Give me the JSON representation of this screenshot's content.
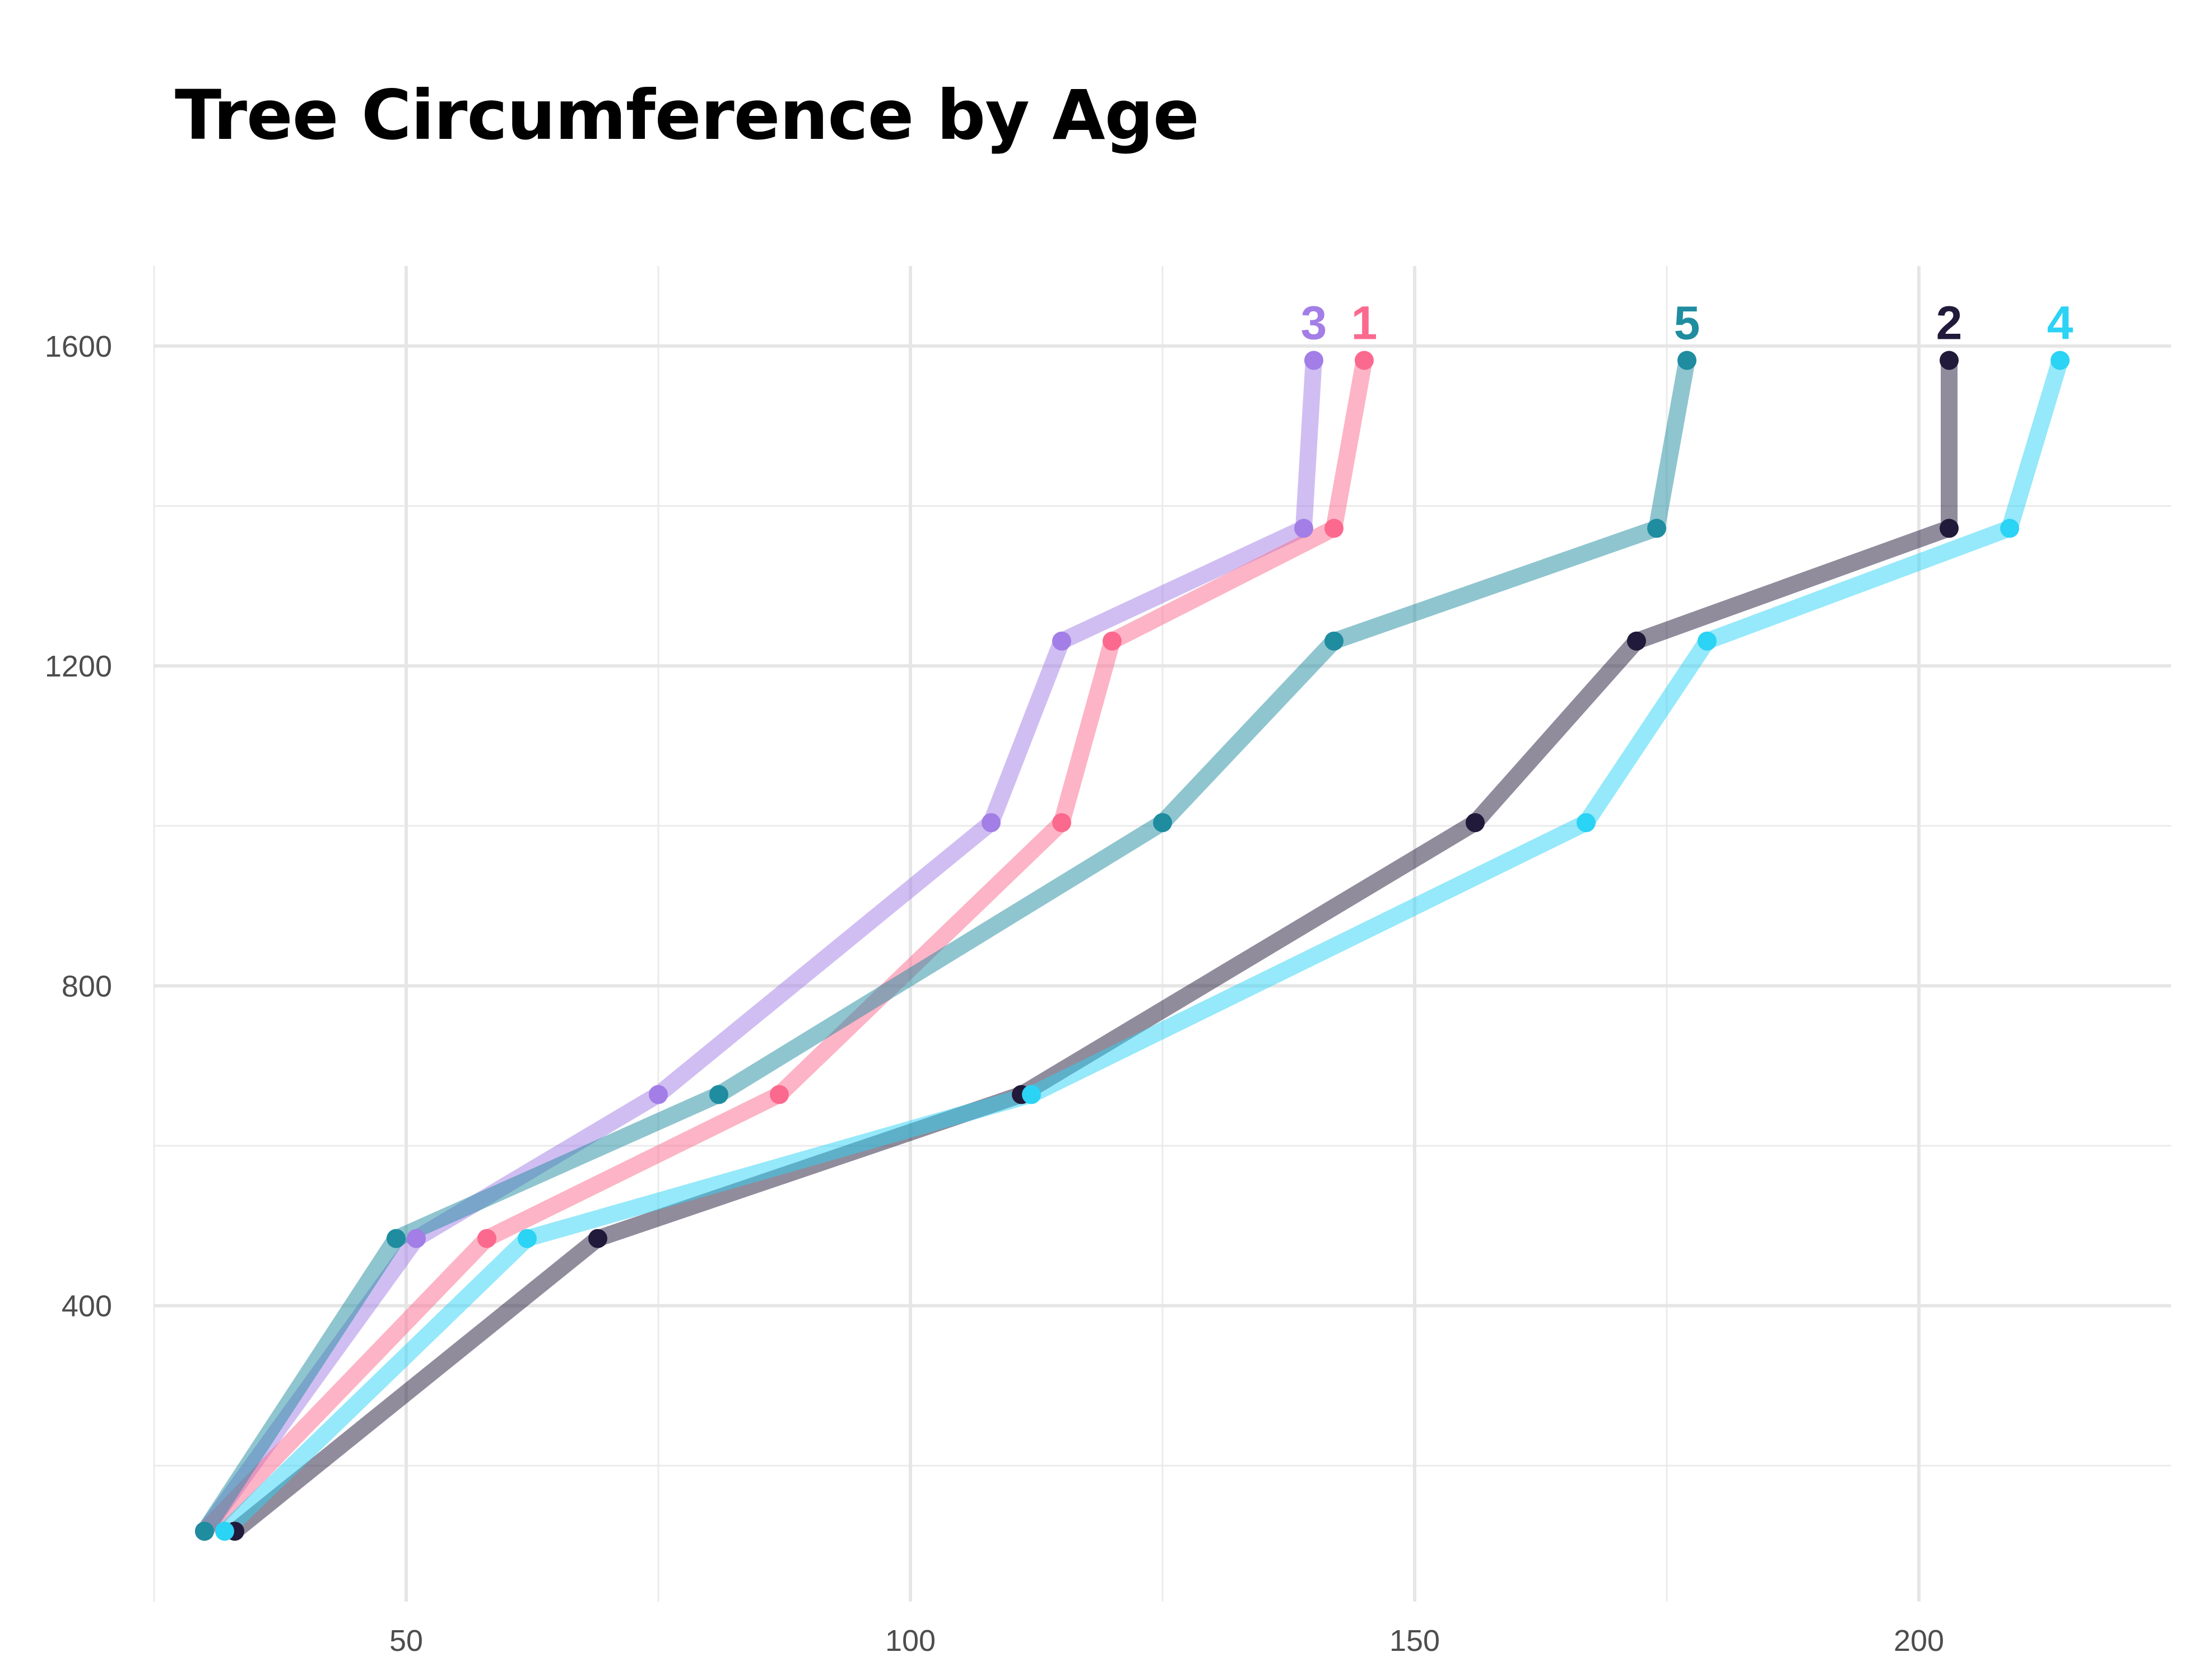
{
  "chart_data": {
    "type": "line",
    "title": "Tree Circumference by Age",
    "xlabel": "",
    "ylabel": "",
    "xlim": [
      25,
      225
    ],
    "ylim": [
      30,
      1700
    ],
    "xticks": [
      50,
      100,
      150,
      200
    ],
    "yticks": [
      400,
      800,
      1200,
      1600
    ],
    "x_minor": [
      25,
      75,
      125,
      175
    ],
    "y_minor": [
      200,
      600,
      1000,
      1400
    ],
    "grid": true,
    "legend": "none (direct end labels)",
    "x_axis_variable": "circumference",
    "y_axis_variable": "age",
    "series": [
      {
        "name": "1",
        "color": "#fb6a8e",
        "points": [
          [
            30,
            118
          ],
          [
            58,
            484
          ],
          [
            87,
            664
          ],
          [
            115,
            1004
          ],
          [
            120,
            1231
          ],
          [
            142,
            1372
          ],
          [
            145,
            1582
          ]
        ]
      },
      {
        "name": "2",
        "color": "#221a3a",
        "points": [
          [
            33,
            118
          ],
          [
            69,
            484
          ],
          [
            111,
            664
          ],
          [
            156,
            1004
          ],
          [
            172,
            1231
          ],
          [
            203,
            1372
          ],
          [
            203,
            1582
          ]
        ]
      },
      {
        "name": "3",
        "color": "#a27ee6",
        "points": [
          [
            30,
            118
          ],
          [
            51,
            484
          ],
          [
            75,
            664
          ],
          [
            108,
            1004
          ],
          [
            115,
            1231
          ],
          [
            139,
            1372
          ],
          [
            140,
            1582
          ]
        ]
      },
      {
        "name": "4",
        "color": "#2bd3f5",
        "points": [
          [
            32,
            118
          ],
          [
            62,
            484
          ],
          [
            112,
            664
          ],
          [
            167,
            1004
          ],
          [
            179,
            1231
          ],
          [
            209,
            1372
          ],
          [
            214,
            1582
          ]
        ]
      },
      {
        "name": "5",
        "color": "#1f8ca0",
        "points": [
          [
            30,
            118
          ],
          [
            49,
            484
          ],
          [
            81,
            664
          ],
          [
            125,
            1004
          ],
          [
            142,
            1231
          ],
          [
            174,
            1372
          ],
          [
            177,
            1582
          ]
        ]
      }
    ],
    "draw_order": [
      "3",
      "1",
      "5",
      "2",
      "4"
    ]
  }
}
